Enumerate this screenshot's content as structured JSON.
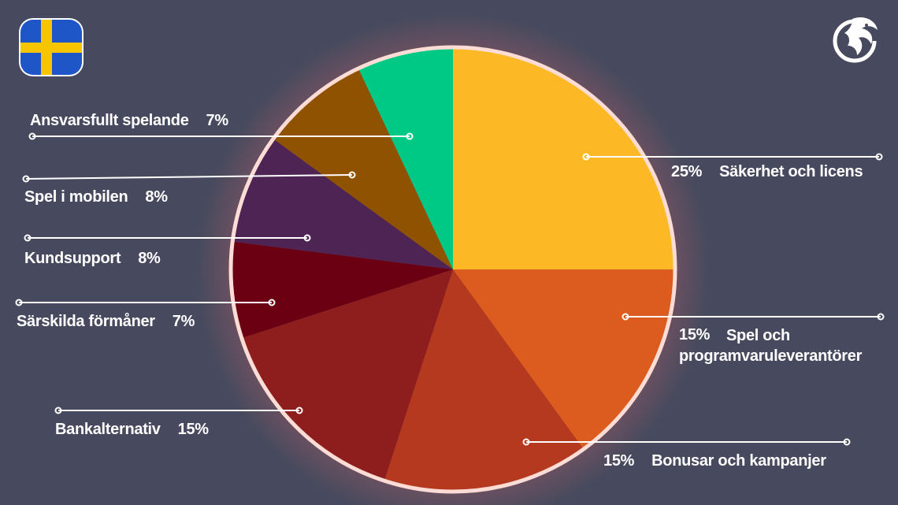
{
  "colors": {
    "background": "#474a5e",
    "ring": "#fcdcd4",
    "text": "#ffffff"
  },
  "icons": {
    "flag": "sweden-flag-icon",
    "logo": "dragon-logo-icon"
  },
  "chart_data": {
    "type": "pie",
    "slices": [
      {
        "label": "Säkerhet och licens",
        "value": 25,
        "pct_text": "25%",
        "color": "#fdb925"
      },
      {
        "label": "Spel och programvaruleverantörer",
        "value": 15,
        "pct_text": "15%",
        "color": "#dc5b1e"
      },
      {
        "label": "Bonusar och kampanjer",
        "value": 15,
        "pct_text": "15%",
        "color": "#b5391e"
      },
      {
        "label": "Bankalternativ",
        "value": 15,
        "pct_text": "15%",
        "color": "#8e1d1d"
      },
      {
        "label": "Särskilda förmåner",
        "value": 7,
        "pct_text": "7%",
        "color": "#6b0012"
      },
      {
        "label": "Kundsupport",
        "value": 8,
        "pct_text": "8%",
        "color": "#4e2454"
      },
      {
        "label": "Spel i mobilen",
        "value": 8,
        "pct_text": "8%",
        "color": "#8f5201"
      },
      {
        "label": "Ansvarsfullt spelande",
        "value": 7,
        "pct_text": "7%",
        "color": "#00c986"
      }
    ]
  }
}
